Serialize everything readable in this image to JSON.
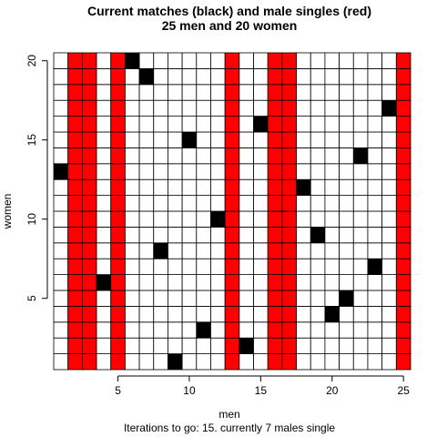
{
  "chart_data": {
    "type": "heatmap",
    "title": "Current matches (black) and male singles (red)",
    "subtitle": "25 men and 20 women",
    "xlabel": "men",
    "ylabel": "women",
    "footer": "Iterations to go: 15. currently 7 males single",
    "n_men": 25,
    "n_women": 20,
    "x_ticks": [
      5,
      10,
      15,
      20,
      25
    ],
    "y_ticks": [
      5,
      10,
      15,
      20
    ],
    "colors": {
      "match": "#000000",
      "single": "#ff0000",
      "empty": "#ffffff",
      "grid": "#000000"
    },
    "single_men": [
      2,
      3,
      5,
      13,
      16,
      17,
      25
    ],
    "matches": [
      {
        "man": 1,
        "woman": 13
      },
      {
        "man": 4,
        "woman": 6
      },
      {
        "man": 6,
        "woman": 20
      },
      {
        "man": 7,
        "woman": 19
      },
      {
        "man": 8,
        "woman": 8
      },
      {
        "man": 9,
        "woman": 1
      },
      {
        "man": 10,
        "woman": 15
      },
      {
        "man": 11,
        "woman": 3
      },
      {
        "man": 12,
        "woman": 10
      },
      {
        "man": 14,
        "woman": 2
      },
      {
        "man": 15,
        "woman": 16
      },
      {
        "man": 18,
        "woman": 12
      },
      {
        "man": 19,
        "woman": 9
      },
      {
        "man": 20,
        "woman": 4
      },
      {
        "man": 21,
        "woman": 5
      },
      {
        "man": 22,
        "woman": 14
      },
      {
        "man": 23,
        "woman": 7
      },
      {
        "man": 24,
        "woman": 17
      }
    ]
  }
}
